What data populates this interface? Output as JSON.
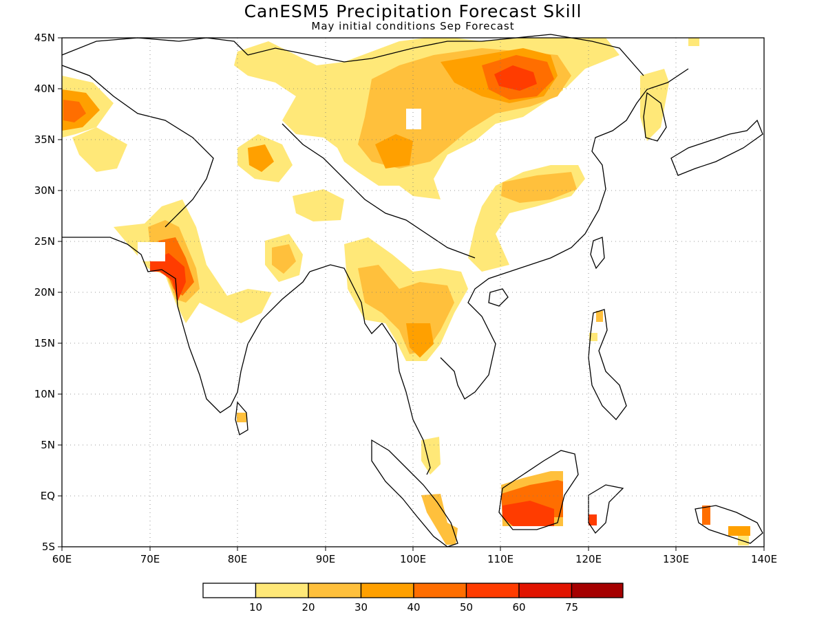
{
  "title": "CanESM5 Precipitation Forecast Skill",
  "subtitle": "May initial conditions  Sep Forecast",
  "map": {
    "lon_range": [
      60,
      140
    ],
    "lat_range": [
      -5,
      45
    ],
    "lon_ticks": [
      "60E",
      "70E",
      "80E",
      "90E",
      "100E",
      "110E",
      "120E",
      "130E",
      "140E"
    ],
    "lat_ticks": [
      "5S",
      "EQ",
      "5N",
      "10N",
      "15N",
      "20N",
      "25N",
      "30N",
      "35N",
      "40N",
      "45N"
    ],
    "grid": true
  },
  "legend": {
    "levels": [
      "10",
      "20",
      "30",
      "40",
      "50",
      "60",
      "75"
    ],
    "colors": [
      "#ffffff",
      "#ffe878",
      "#ffc03c",
      "#ffa000",
      "#ff6e00",
      "#ff3c00",
      "#e11400",
      "#a50000"
    ]
  }
}
